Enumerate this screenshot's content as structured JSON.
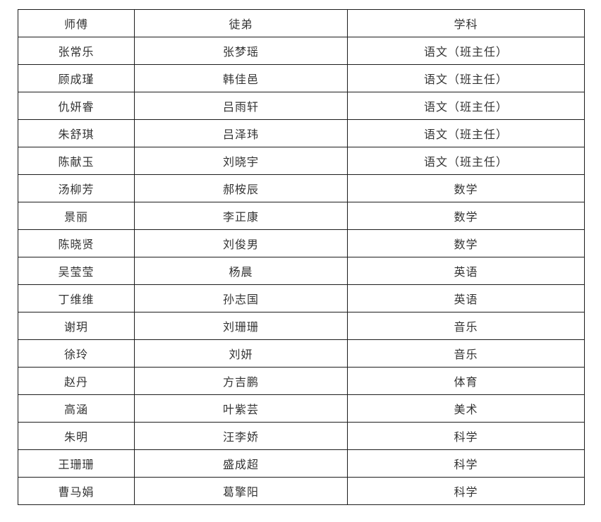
{
  "table": {
    "headers": [
      "师傅",
      "徒弟",
      "学科"
    ],
    "rows": [
      {
        "master": "张常乐",
        "apprentice": "张梦瑶",
        "subject": "语文（班主任）"
      },
      {
        "master": "顾成瑾",
        "apprentice": "韩佳邑",
        "subject": "语文（班主任）"
      },
      {
        "master": "仇妍睿",
        "apprentice": "吕雨轩",
        "subject": "语文（班主任）"
      },
      {
        "master": "朱舒琪",
        "apprentice": "吕泽玮",
        "subject": "语文（班主任）"
      },
      {
        "master": "陈献玉",
        "apprentice": "刘晓宇",
        "subject": "语文（班主任）"
      },
      {
        "master": "汤柳芳",
        "apprentice": "郝桉辰",
        "subject": "数学"
      },
      {
        "master": "景丽",
        "apprentice": "李正康",
        "subject": "数学"
      },
      {
        "master": "陈晓贤",
        "apprentice": "刘俊男",
        "subject": "数学"
      },
      {
        "master": "吴莹莹",
        "apprentice": "杨晨",
        "subject": "英语"
      },
      {
        "master": "丁维维",
        "apprentice": "孙志国",
        "subject": "英语"
      },
      {
        "master": "谢玥",
        "apprentice": "刘珊珊",
        "subject": "音乐"
      },
      {
        "master": "徐玲",
        "apprentice": "刘妍",
        "subject": "音乐"
      },
      {
        "master": "赵丹",
        "apprentice": "方吉鹏",
        "subject": "体育"
      },
      {
        "master": "高涵",
        "apprentice": "叶紫芸",
        "subject": "美术"
      },
      {
        "master": "朱明",
        "apprentice": "汪李娇",
        "subject": "科学"
      },
      {
        "master": "王珊珊",
        "apprentice": "盛成超",
        "subject": "科学"
      },
      {
        "master": "曹马娟",
        "apprentice": "葛擎阳",
        "subject": "科学"
      }
    ],
    "border_color": "#1c1c1c",
    "text_color": "#333333",
    "background_color": "#ffffff"
  }
}
